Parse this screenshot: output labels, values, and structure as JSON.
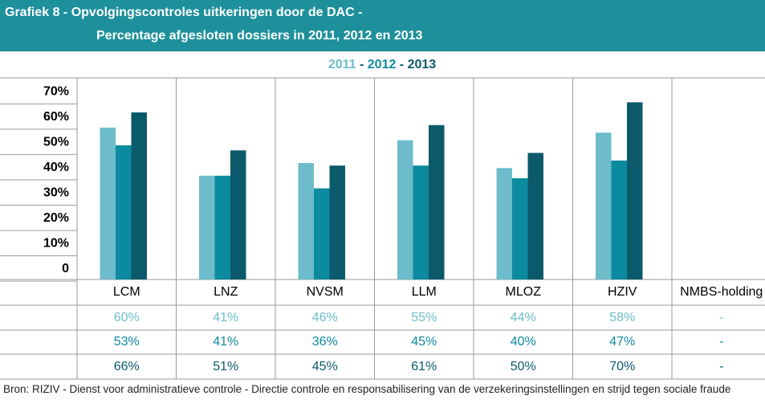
{
  "chart_data": {
    "type": "bar",
    "title": [
      "Grafiek 8 - Opvolgingscontroles uitkeringen door de DAC -",
      "Percentage afgesloten dossiers in 2011, 2012 en 2013"
    ],
    "legend_separator": "-",
    "categories": [
      "LCM",
      "LNZ",
      "NVSM",
      "LLM",
      "MLOZ",
      "HZIV",
      "NMBS-holding"
    ],
    "series": [
      {
        "name": "2011",
        "color": "#6dbccb",
        "values": [
          60,
          41,
          46,
          55,
          44,
          58,
          null
        ],
        "value_labels": [
          "60%",
          "41%",
          "46%",
          "55%",
          "44%",
          "58%",
          "-"
        ]
      },
      {
        "name": "2012",
        "color": "#0c8a9f",
        "values": [
          53,
          41,
          36,
          45,
          40,
          47,
          null
        ],
        "value_labels": [
          "53%",
          "41%",
          "36%",
          "45%",
          "40%",
          "47%",
          "-"
        ]
      },
      {
        "name": "2013",
        "color": "#0b5a6b",
        "values": [
          66,
          51,
          45,
          61,
          50,
          70,
          null
        ],
        "value_labels": [
          "66%",
          "51%",
          "45%",
          "61%",
          "50%",
          "70%",
          "-"
        ]
      }
    ],
    "ylim": [
      0,
      79
    ],
    "yticks": [
      0,
      {
        "value": 10,
        "label": "10%"
      },
      {
        "value": 20,
        "label": "20%"
      },
      {
        "value": 30,
        "label": "30%"
      },
      {
        "value": 40,
        "label": "40%"
      },
      {
        "value": 50,
        "label": "50%"
      },
      {
        "value": 60,
        "label": "60%"
      },
      {
        "value": 70,
        "label": "70%"
      }
    ],
    "source": "Bron: RIZIV - Dienst voor administratieve controle - Directie controle en responsabilisering van de verzekeringsinstellingen en strijd tegen sociale fraude"
  }
}
